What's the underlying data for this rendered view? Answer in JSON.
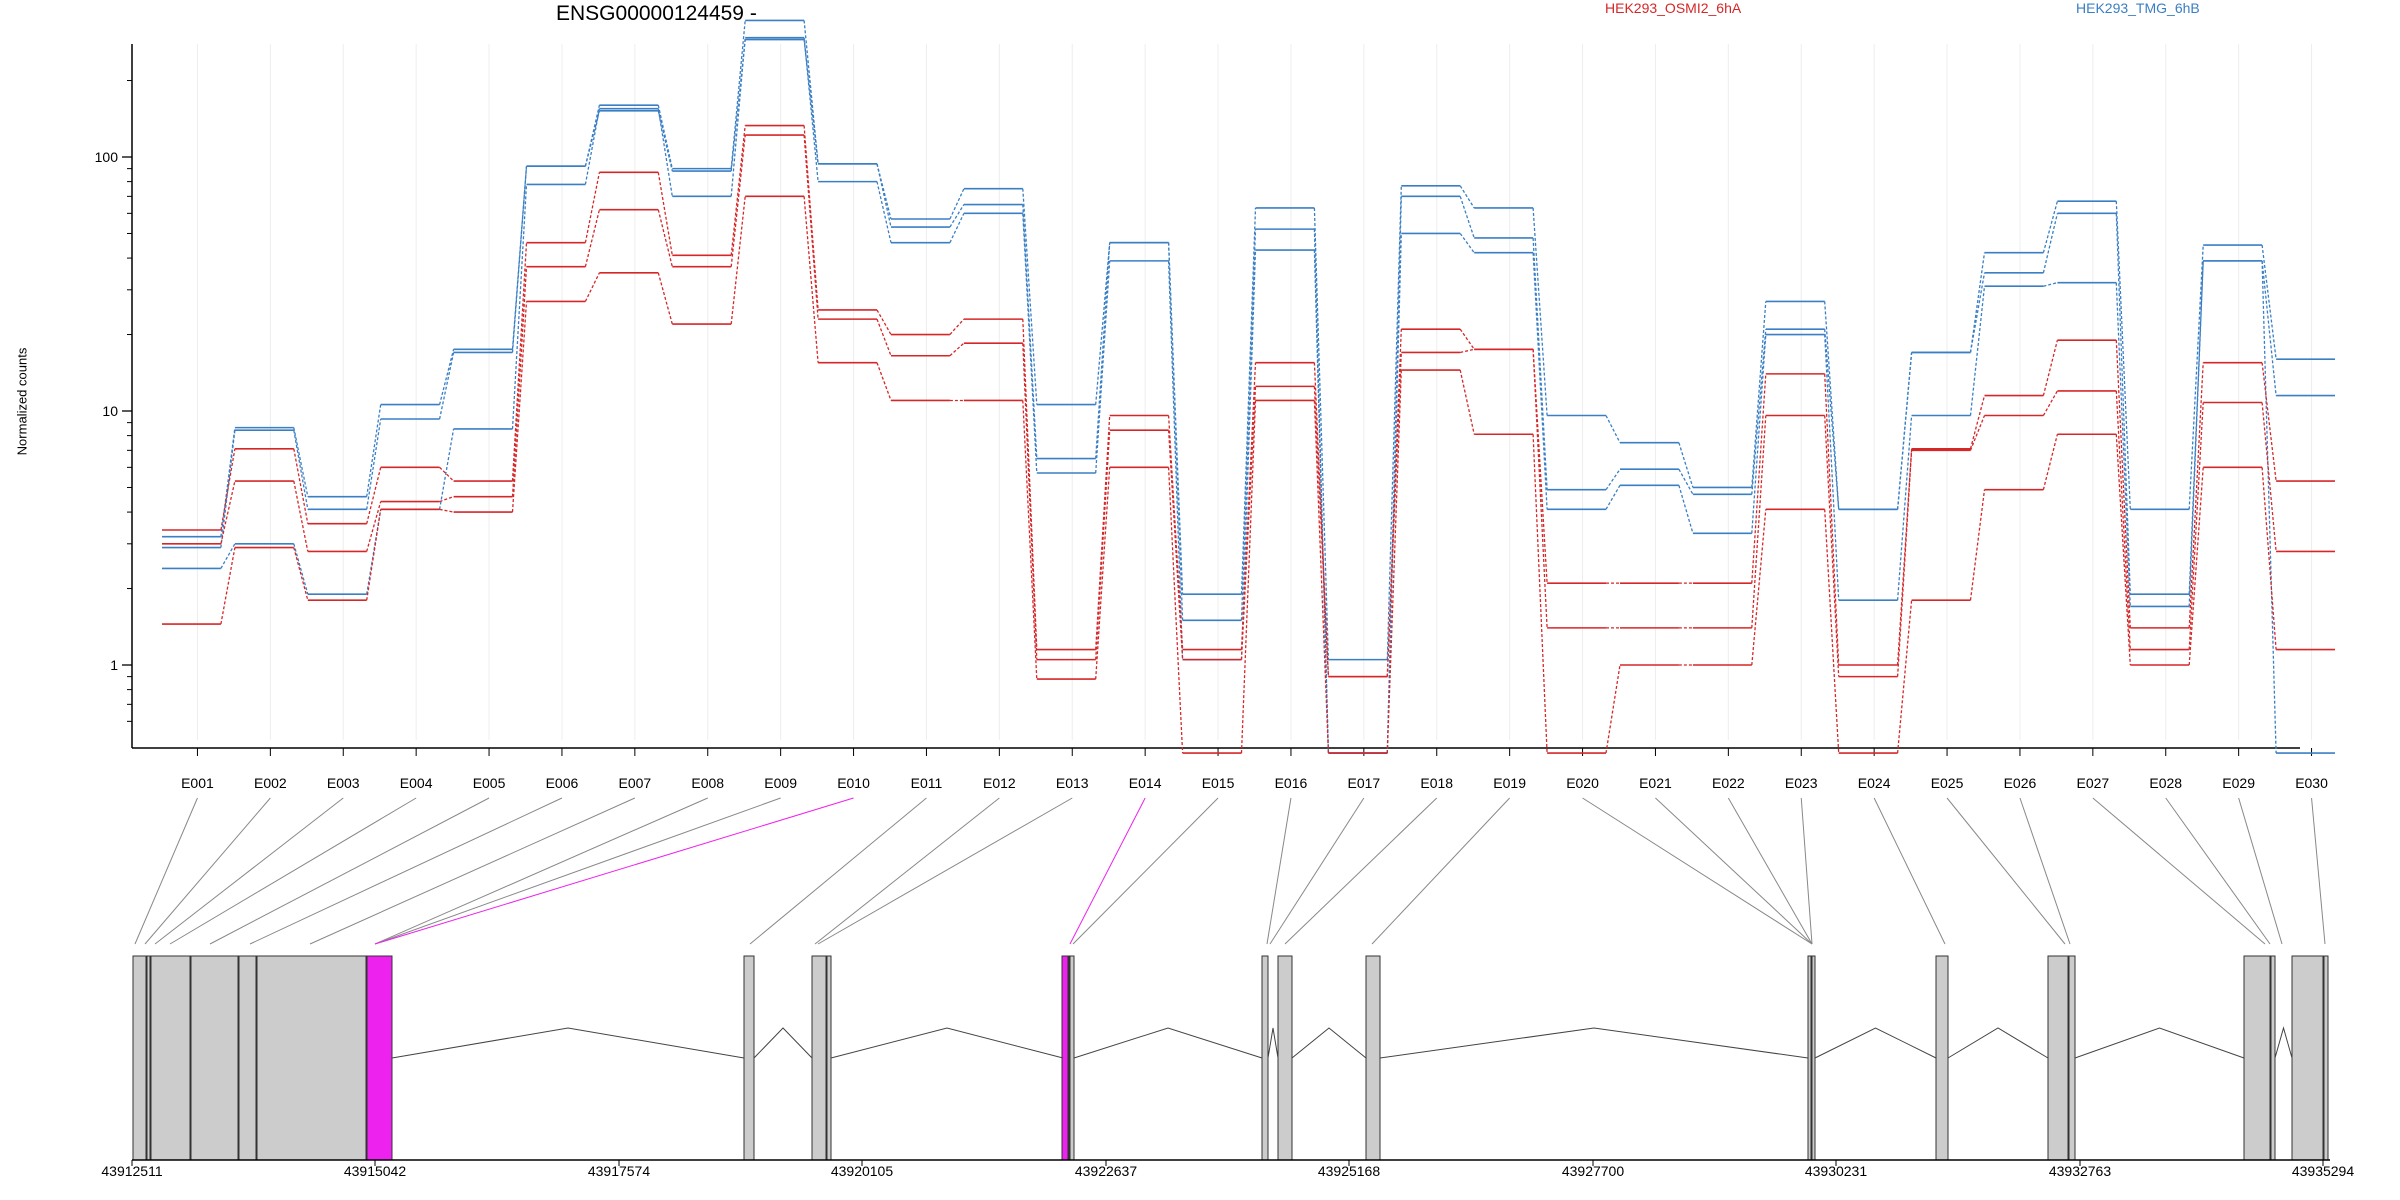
{
  "chart_data": {
    "type": "line",
    "title": "ENSG00000124459 -",
    "ylabel": "Normalized counts",
    "y_scale": "log",
    "y_ticks": [
      "1",
      "10",
      "100"
    ],
    "categories": [
      "E001",
      "E002",
      "E003",
      "E004",
      "E005",
      "E006",
      "E007",
      "E008",
      "E009",
      "E010",
      "E011",
      "E012",
      "E013",
      "E014",
      "E015",
      "E016",
      "E017",
      "E018",
      "E019",
      "E020",
      "E021",
      "E022",
      "E023",
      "E024",
      "E025",
      "E026",
      "E027",
      "E028",
      "E029",
      "E030"
    ],
    "legend": [
      "HEK293_OSMI2_6hA",
      "HEK293_TMG_6hB"
    ],
    "series": [
      {
        "group": "HEK293_TMG_6hB",
        "color": "#3a7fc4",
        "values": [
          3.2,
          8.6,
          4.6,
          10.6,
          17.5,
          92,
          160,
          90,
          345,
          94,
          57,
          75,
          10.6,
          46,
          1.9,
          63,
          1.05,
          77,
          63,
          9.6,
          7.5,
          5.0,
          27,
          4.1,
          17,
          42,
          67,
          4.1,
          45,
          16
        ]
      },
      {
        "group": "HEK293_TMG_6hB",
        "color": "#3a7fc4",
        "values": [
          2.9,
          8.4,
          4.1,
          9.3,
          17,
          92,
          152,
          88,
          290,
          94,
          53,
          65,
          6.5,
          46,
          1.5,
          52,
          0.45,
          70,
          48,
          4.9,
          5.9,
          4.7,
          21,
          4.1,
          17,
          35,
          60,
          1.9,
          39,
          11.5
        ]
      },
      {
        "group": "HEK293_TMG_6hB",
        "color": "#3a7fc4",
        "values": [
          2.4,
          3.0,
          1.9,
          4.1,
          8.5,
          78,
          155,
          70,
          295,
          80,
          46,
          60,
          5.7,
          39,
          1.05,
          43,
          0.45,
          50,
          42,
          4.1,
          5.1,
          3.3,
          20,
          1.8,
          9.6,
          31,
          32,
          1.7,
          39,
          0.45
        ]
      },
      {
        "group": "HEK293_OSMI2_6hA",
        "color": "#d62728",
        "values": [
          3.4,
          7.1,
          3.6,
          6.0,
          5.3,
          46,
          87,
          41,
          133,
          25,
          20,
          23,
          1.15,
          9.6,
          1.15,
          15.5,
          0.9,
          21,
          17.5,
          2.1,
          2.1,
          2.1,
          14,
          1.0,
          7.1,
          11.5,
          19,
          1.4,
          15.5,
          5.3
        ]
      },
      {
        "group": "HEK293_OSMI2_6hA",
        "color": "#d62728",
        "values": [
          3.0,
          5.3,
          2.8,
          4.4,
          4.6,
          37,
          62,
          37,
          122,
          23,
          16.5,
          18.5,
          1.05,
          8.4,
          1.05,
          12.5,
          0.9,
          17,
          17.5,
          1.4,
          1.4,
          1.4,
          9.6,
          0.9,
          7.0,
          9.6,
          12,
          1.15,
          10.8,
          2.8
        ]
      },
      {
        "group": "HEK293_OSMI2_6hA",
        "color": "#d62728",
        "values": [
          1.45,
          2.9,
          1.8,
          4.1,
          4.0,
          27,
          35,
          22,
          70,
          15.5,
          11,
          11,
          0.88,
          6.0,
          0.45,
          11,
          0.45,
          14.5,
          8.1,
          0.45,
          1.0,
          1.0,
          4.1,
          0.45,
          1.8,
          4.9,
          8.1,
          1.0,
          6.0,
          1.15
        ]
      }
    ],
    "gene_model": {
      "genomic_ticks": [
        "43912511",
        "43915042",
        "43917574",
        "43920105",
        "43922637",
        "43925168",
        "43927700",
        "43930231",
        "43932763",
        "43935294"
      ],
      "highlighted_exons": [
        "E010",
        "E014"
      ],
      "highlight_color": "#ee22ee",
      "exon_color": "#cccccc"
    },
    "grid": false,
    "legend_position": "top"
  }
}
